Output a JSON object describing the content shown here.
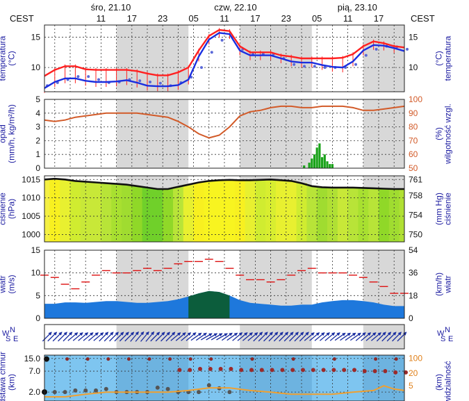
{
  "header": {
    "tz_left": "CEST",
    "tz_right": "CEST",
    "dates": [
      {
        "label": "śro, 21.10",
        "hour": 9
      },
      {
        "label": "czw, 22.10",
        "hour": 33
      },
      {
        "label": "pią, 23.10",
        "hour": 57
      }
    ],
    "hour_ticks": [
      {
        "label": "11",
        "hour": 11
      },
      {
        "label": "17",
        "hour": 17
      },
      {
        "label": "23",
        "hour": 23
      },
      {
        "label": "05",
        "hour": 29
      },
      {
        "label": "11",
        "hour": 35
      },
      {
        "label": "17",
        "hour": 41
      },
      {
        "label": "23",
        "hour": 47
      },
      {
        "label": "05",
        "hour": 53
      },
      {
        "label": "11",
        "hour": 59
      },
      {
        "label": "17",
        "hour": 65
      }
    ],
    "night_bands": [
      [
        14,
        28
      ],
      [
        38,
        52
      ],
      [
        62,
        70
      ]
    ]
  },
  "colors": {
    "temp": "#ff2020",
    "dew": "#1a2ee0",
    "humidity": "#d25a28",
    "precip": "#1aa21a",
    "pressure_line": "#111111",
    "gust": "#dd1111",
    "wind_fill": "#1e78dc",
    "wind_strong": "#0a5a2a",
    "vis_bg": "#7ec5f0",
    "vis_line": "#f0a030",
    "axis_label": "#1a1aa0"
  },
  "chart_data": [
    {
      "type": "line",
      "panel": "temperature",
      "ylabel_right": "(°C)\ntemperatura",
      "ylabel_left": "temperatura\n(°C)",
      "ylim": [
        6,
        17
      ],
      "yticks": [
        10,
        15
      ],
      "x": [
        0,
        2,
        4,
        6,
        8,
        10,
        12,
        14,
        16,
        18,
        20,
        22,
        24,
        26,
        28,
        30,
        32,
        34,
        36,
        38,
        40,
        42,
        44,
        46,
        48,
        50,
        52,
        54,
        56,
        58,
        60,
        62,
        64,
        66,
        68,
        70
      ],
      "series": [
        {
          "key": "temp",
          "values": [
            8.6,
            9.6,
            10.2,
            10.2,
            9.7,
            9.6,
            9.6,
            9.6,
            9.6,
            9.4,
            9.0,
            8.7,
            8.7,
            9.2,
            10.0,
            12.8,
            15.2,
            16.2,
            16.0,
            13.5,
            12.5,
            12.5,
            12.5,
            12.0,
            11.8,
            11.5,
            11.5,
            11.5,
            11.5,
            11.6,
            12.2,
            13.5,
            14.3,
            14.0,
            13.5,
            13.3
          ]
        },
        {
          "key": "dew",
          "values": [
            6.6,
            7.6,
            8.2,
            8.2,
            7.8,
            7.6,
            7.6,
            7.7,
            7.9,
            7.5,
            7.0,
            6.9,
            6.9,
            7.1,
            8.0,
            11.8,
            14.6,
            15.7,
            15.5,
            12.8,
            12.0,
            12.0,
            12.0,
            11.5,
            11.0,
            10.8,
            10.8,
            10.4,
            10.1,
            10.0,
            11.0,
            12.8,
            13.7,
            13.6,
            13.2,
            12.7
          ]
        }
      ],
      "dots_hours": [
        0,
        2,
        4,
        6,
        8,
        10,
        12,
        14,
        16,
        18,
        20,
        22,
        24,
        26,
        28,
        30,
        32,
        34,
        36,
        38,
        40,
        42,
        44,
        46,
        48,
        50,
        52,
        54,
        56,
        58,
        60,
        62,
        64,
        66,
        68,
        70
      ],
      "dots_values": [
        7.0,
        7.5,
        8.0,
        8.5,
        8.5,
        8.0,
        7.5,
        7.6,
        8.0,
        7.8,
        7.6,
        7.4,
        7.0,
        7.5,
        8.4,
        10.0,
        12.5,
        14.5,
        15.0,
        13.0,
        12.2,
        12.2,
        12.2,
        11.5,
        10.5,
        10.2,
        10.2,
        10.0,
        10.0,
        10.0,
        10.5,
        12.0,
        13.0,
        13.5,
        13.4,
        13.0
      ]
    },
    {
      "type": "bar",
      "panel": "precipitation",
      "ylabel_left": "opad\n(mm/h, kg/m²/h)",
      "ylabel_right": "(%)\nwilgotność wzgl.",
      "ylim": [
        0,
        5
      ],
      "yticks": [
        0,
        1,
        2,
        3,
        4,
        5
      ],
      "right_ylim": [
        50,
        100
      ],
      "right_yticks": [
        50,
        60,
        70,
        80,
        90,
        100
      ],
      "humidity_x": [
        0,
        2,
        4,
        6,
        8,
        10,
        12,
        14,
        16,
        18,
        20,
        22,
        24,
        26,
        28,
        30,
        32,
        34,
        36,
        38,
        40,
        42,
        44,
        46,
        48,
        50,
        52,
        54,
        56,
        58,
        60,
        62,
        64,
        66,
        68,
        70
      ],
      "humidity": [
        85,
        84,
        85,
        87,
        88,
        89,
        90,
        90,
        90,
        90,
        89,
        88,
        87,
        84,
        80,
        75,
        72,
        74,
        80,
        88,
        91,
        92,
        94,
        95,
        95,
        94,
        94,
        95,
        95,
        95,
        94,
        92,
        92,
        93,
        94,
        95
      ],
      "precip_hours": [
        50.5,
        51.5,
        52.0,
        52.5,
        53.0,
        53.5,
        54.0,
        54.5,
        55.0,
        55.5,
        56.0
      ],
      "precip_values": [
        0.2,
        0.4,
        0.7,
        1.0,
        1.5,
        1.8,
        0.8,
        1.0,
        0.5,
        0.3,
        0.3
      ]
    },
    {
      "type": "line",
      "panel": "pressure",
      "ylabel_left": "ciśnienie\n(hPa)",
      "ylabel_right": "(mm Hg)\nciśnienie",
      "ylim": [
        998,
        1016
      ],
      "yticks": [
        1000,
        1005,
        1010,
        1015
      ],
      "right_ticks": [
        {
          "label": "761",
          "hpa": 1015.0
        },
        {
          "label": "758",
          "hpa": 1010.6
        },
        {
          "label": "754",
          "hpa": 1005.3
        },
        {
          "label": "750",
          "hpa": 1000.0
        }
      ],
      "x": [
        0,
        2,
        4,
        6,
        8,
        10,
        12,
        14,
        16,
        18,
        20,
        22,
        24,
        26,
        28,
        30,
        32,
        34,
        36,
        38,
        40,
        42,
        44,
        46,
        48,
        50,
        52,
        54,
        56,
        58,
        60,
        62,
        64,
        66,
        68,
        70
      ],
      "values": [
        1015.0,
        1015.2,
        1015.0,
        1014.6,
        1014.4,
        1014.2,
        1014.0,
        1013.8,
        1013.6,
        1013.2,
        1012.8,
        1012.4,
        1012.4,
        1013.0,
        1013.6,
        1014.2,
        1014.6,
        1014.8,
        1014.9,
        1014.8,
        1014.8,
        1014.9,
        1015.0,
        1014.8,
        1014.6,
        1014.0,
        1013.2,
        1012.9,
        1012.8,
        1012.8,
        1012.8,
        1012.7,
        1012.6,
        1012.5,
        1012.4,
        1012.4
      ]
    },
    {
      "type": "area",
      "panel": "wind",
      "ylabel_left": "wiatr\n(m/s)",
      "ylabel_right": "(km/h)\nwiatr",
      "ylim": [
        0,
        15
      ],
      "yticks": [
        0,
        5,
        10,
        15
      ],
      "right_ticks": [
        {
          "label": "54",
          "ms": 15
        },
        {
          "label": "36",
          "ms": 10
        },
        {
          "label": "18",
          "ms": 5
        },
        {
          "label": "0",
          "ms": 0
        }
      ],
      "x": [
        0,
        2,
        4,
        6,
        8,
        10,
        12,
        14,
        16,
        18,
        20,
        22,
        24,
        26,
        28,
        30,
        32,
        34,
        36,
        38,
        40,
        42,
        44,
        46,
        48,
        50,
        52,
        54,
        56,
        58,
        60,
        62,
        64,
        66,
        68,
        70
      ],
      "speed": [
        3.2,
        3.2,
        3.5,
        3.5,
        3.4,
        3.6,
        3.8,
        3.8,
        3.6,
        3.4,
        3.4,
        3.6,
        3.8,
        4.2,
        4.8,
        5.5,
        6.0,
        5.8,
        5.0,
        4.0,
        3.4,
        3.2,
        3.0,
        2.8,
        2.8,
        3.0,
        3.0,
        3.5,
        3.8,
        4.0,
        4.0,
        3.8,
        3.5,
        3.0,
        2.7,
        2.7
      ],
      "gust": [
        9.5,
        9.0,
        7.5,
        6.5,
        8.0,
        9.5,
        10.5,
        10.0,
        10.0,
        10.5,
        11.0,
        10.5,
        11.0,
        12.0,
        12.5,
        12.5,
        13.0,
        12.5,
        11.0,
        9.5,
        8.5,
        8.5,
        8.0,
        8.5,
        9.5,
        10.5,
        11.0,
        10.0,
        10.0,
        10.0,
        9.5,
        9.0,
        8.0,
        7.0,
        5.5,
        5.5
      ]
    },
    {
      "type": "table",
      "panel": "wind_direction",
      "compass": [
        "N",
        "E",
        "S",
        "W"
      ],
      "directions_deg": [
        225,
        225,
        225,
        230,
        230,
        230,
        225,
        225,
        225,
        220,
        220,
        225,
        225,
        230,
        230,
        235,
        240,
        240,
        235,
        230,
        230,
        225,
        225,
        225,
        225,
        225,
        230,
        230,
        230,
        235,
        235,
        230,
        230,
        225,
        225,
        225
      ]
    },
    {
      "type": "scatter",
      "panel": "clouds_visibility",
      "ylabel_left": "podstawa chmur\n(km)",
      "ylabel_right": "(km)\nwidzialność",
      "yticks_left": [
        {
          "label": "15.0",
          "v": 15
        },
        {
          "label": "7.0",
          "v": 7
        },
        {
          "label": "2.0",
          "v": 2
        }
      ],
      "yticks_right": [
        {
          "label": "100",
          "v": 100
        },
        {
          "label": "20",
          "v": 20
        },
        {
          "label": "5",
          "v": 5
        }
      ],
      "high_clouds_hours": [
        26,
        28,
        30,
        32,
        34,
        36,
        38,
        40,
        42,
        44,
        46,
        48,
        50,
        52,
        54,
        56,
        58,
        60,
        62,
        64,
        66,
        68,
        70
      ],
      "high_clouds_km": [
        7.5,
        7.5,
        8.0,
        8.0,
        8.0,
        8.0,
        7.5,
        7.5,
        7.5,
        7.5,
        7.5,
        7.5,
        7.5,
        7.5,
        7.5,
        7.5,
        7.5,
        7.5,
        7.0,
        7.0,
        7.0,
        6.5,
        6.5
      ],
      "top_clouds_hours": [
        0,
        4,
        8,
        12,
        16,
        20,
        24,
        28,
        32,
        40,
        48,
        56,
        64,
        68
      ],
      "top_clouds_km": [
        14.5,
        14.5,
        14.5,
        14.5,
        14.5,
        14.5,
        14.5,
        14.5,
        14.5,
        14.5,
        14.5,
        14.5,
        14.5,
        14.5
      ],
      "low_clouds_hours": [
        0,
        2,
        4,
        6,
        8,
        10,
        12,
        14,
        16,
        18,
        20,
        22,
        24,
        26,
        28,
        30,
        32,
        34,
        36
      ],
      "low_clouds_km": [
        2.0,
        2.0,
        2.0,
        2.2,
        2.2,
        2.2,
        2.4,
        2.0,
        2.0,
        2.0,
        2.0,
        2.6,
        2.4,
        2.0,
        2.0,
        2.0,
        3.0,
        2.5,
        2.0
      ],
      "visibility_hours": [
        0,
        4,
        8,
        12,
        16,
        20,
        24,
        28,
        32,
        36,
        40,
        44,
        48,
        52,
        56,
        60,
        64,
        66,
        68,
        70
      ],
      "visibility_km": [
        1.5,
        1.5,
        2.0,
        2.5,
        2.5,
        2.5,
        2.5,
        3.0,
        4.0,
        4.0,
        3.0,
        2.5,
        2.0,
        2.0,
        2.0,
        2.5,
        3.0,
        5.0,
        3.5,
        3.0
      ]
    }
  ]
}
